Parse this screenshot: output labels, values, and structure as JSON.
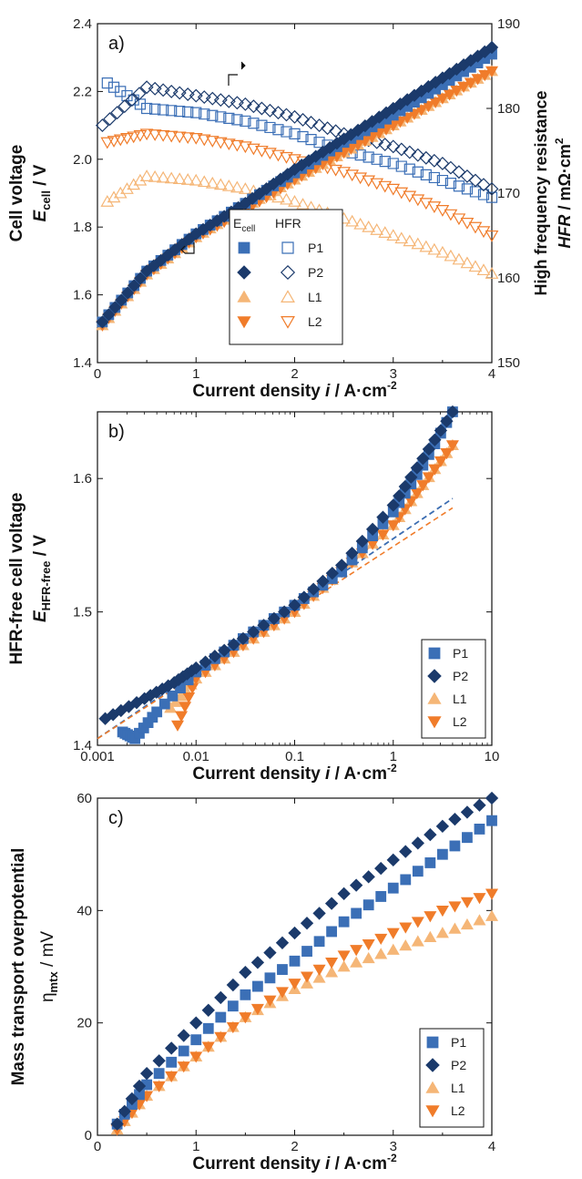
{
  "colors": {
    "P": "#3b6fb6",
    "P2": "#1b3a6b",
    "L1": "#f5b677",
    "L2": "#f07c2a"
  },
  "chart_data": [
    {
      "panel": "a)",
      "type": "scatter",
      "xlabel_pre": "Current density ",
      "xlabel_var": "i",
      "xlabel_post": " / A·cm",
      "xlabel_sup": "-2",
      "ylabel_line1": "Cell voltage",
      "ylabel_var": "E",
      "ylabel_sub": "cell",
      "ylabel_post": " / V",
      "y2label_line1": "High frequency resistance",
      "y2label_var": "HFR",
      "y2label_post": " / mΩ·cm",
      "y2label_sup": "2",
      "xlim": [
        0,
        4
      ],
      "ylim": [
        1.4,
        2.4
      ],
      "y2lim": [
        150,
        190
      ],
      "xticks": [
        "0",
        "1",
        "2",
        "3",
        "4"
      ],
      "yticks": [
        "1.4",
        "1.6",
        "1.8",
        "2.0",
        "2.2",
        "2.4"
      ],
      "y2ticks": [
        "150",
        "160",
        "170",
        "180",
        "190"
      ],
      "legend_header_ecell": "E",
      "legend_header_ecell_sub": "cell",
      "legend_header_hfr": "HFR",
      "series": [
        {
          "name": "P1",
          "marker": "square",
          "x": [
            0.05,
            0.5,
            1.0,
            1.5,
            2.0,
            2.5,
            3.0,
            3.5,
            4.0
          ],
          "y": [
            1.52,
            1.67,
            1.78,
            1.87,
            1.96,
            2.05,
            2.13,
            2.22,
            2.31
          ]
        },
        {
          "name": "P2",
          "marker": "diamond",
          "x": [
            0.05,
            0.5,
            1.0,
            1.5,
            2.0,
            2.5,
            3.0,
            3.5,
            4.0
          ],
          "y": [
            1.52,
            1.67,
            1.78,
            1.87,
            1.97,
            2.06,
            2.15,
            2.24,
            2.33
          ]
        },
        {
          "name": "L1",
          "marker": "triangle-up",
          "x": [
            0.05,
            0.5,
            1.0,
            1.5,
            2.0,
            2.5,
            3.0,
            3.5,
            4.0
          ],
          "y": [
            1.51,
            1.66,
            1.77,
            1.86,
            1.94,
            2.02,
            2.1,
            2.18,
            2.26
          ]
        },
        {
          "name": "L2",
          "marker": "triangle-down",
          "x": [
            0.05,
            0.5,
            1.0,
            1.5,
            2.0,
            2.5,
            3.0,
            3.5,
            4.0
          ],
          "y": [
            1.51,
            1.66,
            1.77,
            1.85,
            1.94,
            2.02,
            2.1,
            2.18,
            2.26
          ]
        }
      ],
      "hfr_series": [
        {
          "name": "P1",
          "marker": "square-open",
          "x": [
            0.1,
            0.5,
            1.0,
            1.5,
            2.0,
            2.5,
            3.0,
            3.5,
            4.0
          ],
          "y": [
            183,
            180,
            179.5,
            178.5,
            177,
            175,
            173.5,
            171.5,
            169.5
          ]
        },
        {
          "name": "P2",
          "marker": "diamond-open",
          "x": [
            0.05,
            0.5,
            1.0,
            1.5,
            2.0,
            2.5,
            3.0,
            3.5,
            4.0
          ],
          "y": [
            178,
            182.5,
            181.5,
            180.5,
            179,
            177,
            175.5,
            173.5,
            170.5
          ]
        },
        {
          "name": "L1",
          "marker": "triangle-up-open",
          "x": [
            0.1,
            0.5,
            1.0,
            1.5,
            2.0,
            2.5,
            3.0,
            3.5,
            4.0
          ],
          "y": [
            169,
            172,
            171.5,
            170.5,
            169,
            167,
            165,
            163,
            160.5
          ]
        },
        {
          "name": "L2",
          "marker": "triangle-down-open",
          "x": [
            0.1,
            0.5,
            1.0,
            1.5,
            2.0,
            2.5,
            3.0,
            3.5,
            4.0
          ],
          "y": [
            176,
            177,
            176.5,
            175.5,
            174,
            172.5,
            170.5,
            168,
            165
          ]
        }
      ]
    },
    {
      "panel": "b)",
      "type": "scatter",
      "xscale": "log",
      "xlabel_pre": "Current density ",
      "xlabel_var": "i",
      "xlabel_post": " / A·cm",
      "xlabel_sup": "-2",
      "ylabel_line1": "HFR-free cell voltage",
      "ylabel_var": "E",
      "ylabel_sub": "HFR-free",
      "ylabel_post": " / V",
      "xlim": [
        0.001,
        10
      ],
      "ylim": [
        1.4,
        1.65
      ],
      "xticks": [
        "0.001",
        "0.01",
        "0.1",
        "1",
        "10"
      ],
      "yticks": [
        "1.4",
        "1.5",
        "1.6"
      ],
      "series": [
        {
          "name": "P1",
          "marker": "square",
          "x": [
            0.0018,
            0.0024,
            0.004,
            0.01,
            0.03,
            0.1,
            0.3,
            1.0,
            2.0,
            4.0
          ],
          "y": [
            1.41,
            1.405,
            1.425,
            1.455,
            1.48,
            1.505,
            1.53,
            1.575,
            1.61,
            1.65
          ]
        },
        {
          "name": "P2",
          "marker": "diamond",
          "x": [
            0.0012,
            0.003,
            0.006,
            0.01,
            0.03,
            0.1,
            0.3,
            1.0,
            2.0,
            4.0
          ],
          "y": [
            1.42,
            1.435,
            1.447,
            1.458,
            1.48,
            1.505,
            1.535,
            1.58,
            1.615,
            1.65
          ]
        },
        {
          "name": "L1",
          "marker": "triangle-up",
          "x": [
            0.0055,
            0.01,
            0.03,
            0.1,
            0.3,
            1.0,
            2.0,
            4.0
          ],
          "y": [
            1.428,
            1.45,
            1.475,
            1.5,
            1.53,
            1.565,
            1.595,
            1.625
          ]
        },
        {
          "name": "L2",
          "marker": "triangle-down",
          "x": [
            0.0065,
            0.01,
            0.03,
            0.1,
            0.3,
            1.0,
            2.0,
            4.0
          ],
          "y": [
            1.415,
            1.45,
            1.475,
            1.5,
            1.53,
            1.565,
            1.595,
            1.625
          ]
        }
      ],
      "fit_lines": [
        {
          "color_key": "P2",
          "x": [
            0.001,
            4.0
          ],
          "y": [
            1.405,
            1.585
          ]
        },
        {
          "color_key": "P",
          "x": [
            0.001,
            4.0
          ],
          "y": [
            1.405,
            1.585
          ]
        },
        {
          "color_key": "L2",
          "x": [
            0.001,
            4.0
          ],
          "y": [
            1.405,
            1.578
          ]
        }
      ]
    },
    {
      "panel": "c)",
      "type": "scatter",
      "xlabel_pre": "Current density ",
      "xlabel_var": "i",
      "xlabel_post": " / A·cm",
      "xlabel_sup": "-2",
      "ylabel_line1": "Mass transport overpotential",
      "ylabel_var": "η",
      "ylabel_sub": "mtx",
      "ylabel_post": " / mV",
      "xlim": [
        0,
        4
      ],
      "ylim": [
        0,
        60
      ],
      "xticks": [
        "0",
        "1",
        "2",
        "3",
        "4"
      ],
      "yticks": [
        "0",
        "20",
        "40",
        "60"
      ],
      "series": [
        {
          "name": "P1",
          "marker": "square",
          "x": [
            0.2,
            0.5,
            1.0,
            1.5,
            2.0,
            2.5,
            3.0,
            3.5,
            4.0
          ],
          "y": [
            2,
            9,
            17,
            25,
            31,
            38,
            44,
            50,
            56
          ]
        },
        {
          "name": "P2",
          "marker": "diamond",
          "x": [
            0.2,
            0.5,
            1.0,
            1.5,
            2.0,
            2.5,
            3.0,
            3.5,
            4.0
          ],
          "y": [
            2,
            11,
            20,
            29,
            36,
            43,
            49,
            55,
            60
          ]
        },
        {
          "name": "L1",
          "marker": "triangle-up",
          "x": [
            0.2,
            0.5,
            1.0,
            1.5,
            2.0,
            2.5,
            3.0,
            3.5,
            4.0
          ],
          "y": [
            1,
            7,
            14,
            21,
            26,
            30,
            33,
            36,
            39
          ]
        },
        {
          "name": "L2",
          "marker": "triangle-down",
          "x": [
            0.2,
            0.5,
            1.0,
            1.5,
            2.0,
            2.5,
            3.0,
            3.5,
            4.0
          ],
          "y": [
            1,
            7,
            14,
            21,
            27,
            32,
            36,
            40,
            43
          ]
        }
      ]
    }
  ]
}
